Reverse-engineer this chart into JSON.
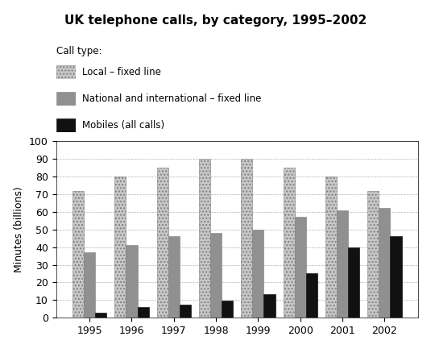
{
  "title": "UK telephone calls, by category, 1995–2002",
  "ylabel": "Minutes (billions)",
  "years": [
    1995,
    1996,
    1997,
    1998,
    1999,
    2000,
    2001,
    2002
  ],
  "local_fixed": [
    72,
    80,
    85,
    90,
    90,
    85,
    80,
    72
  ],
  "national_fixed": [
    37,
    41,
    46,
    48,
    50,
    57,
    61,
    62
  ],
  "mobiles": [
    3,
    6,
    7.5,
    9.5,
    13.5,
    25,
    40,
    46
  ],
  "color_local": "#c8c8c8",
  "color_national": "#909090",
  "color_mobiles": "#111111",
  "hatch_local": "....",
  "hatch_national": "",
  "ylim": [
    0,
    100
  ],
  "yticks": [
    0,
    10,
    20,
    30,
    40,
    50,
    60,
    70,
    80,
    90,
    100
  ],
  "legend_title": "Call type:",
  "legend_labels": [
    "Local – fixed line",
    "National and international – fixed line",
    "Mobiles (all calls)"
  ],
  "bar_width": 0.27,
  "title_fontsize": 11,
  "axis_fontsize": 9,
  "legend_fontsize": 8.5,
  "legend_title_fontsize": 8.5
}
